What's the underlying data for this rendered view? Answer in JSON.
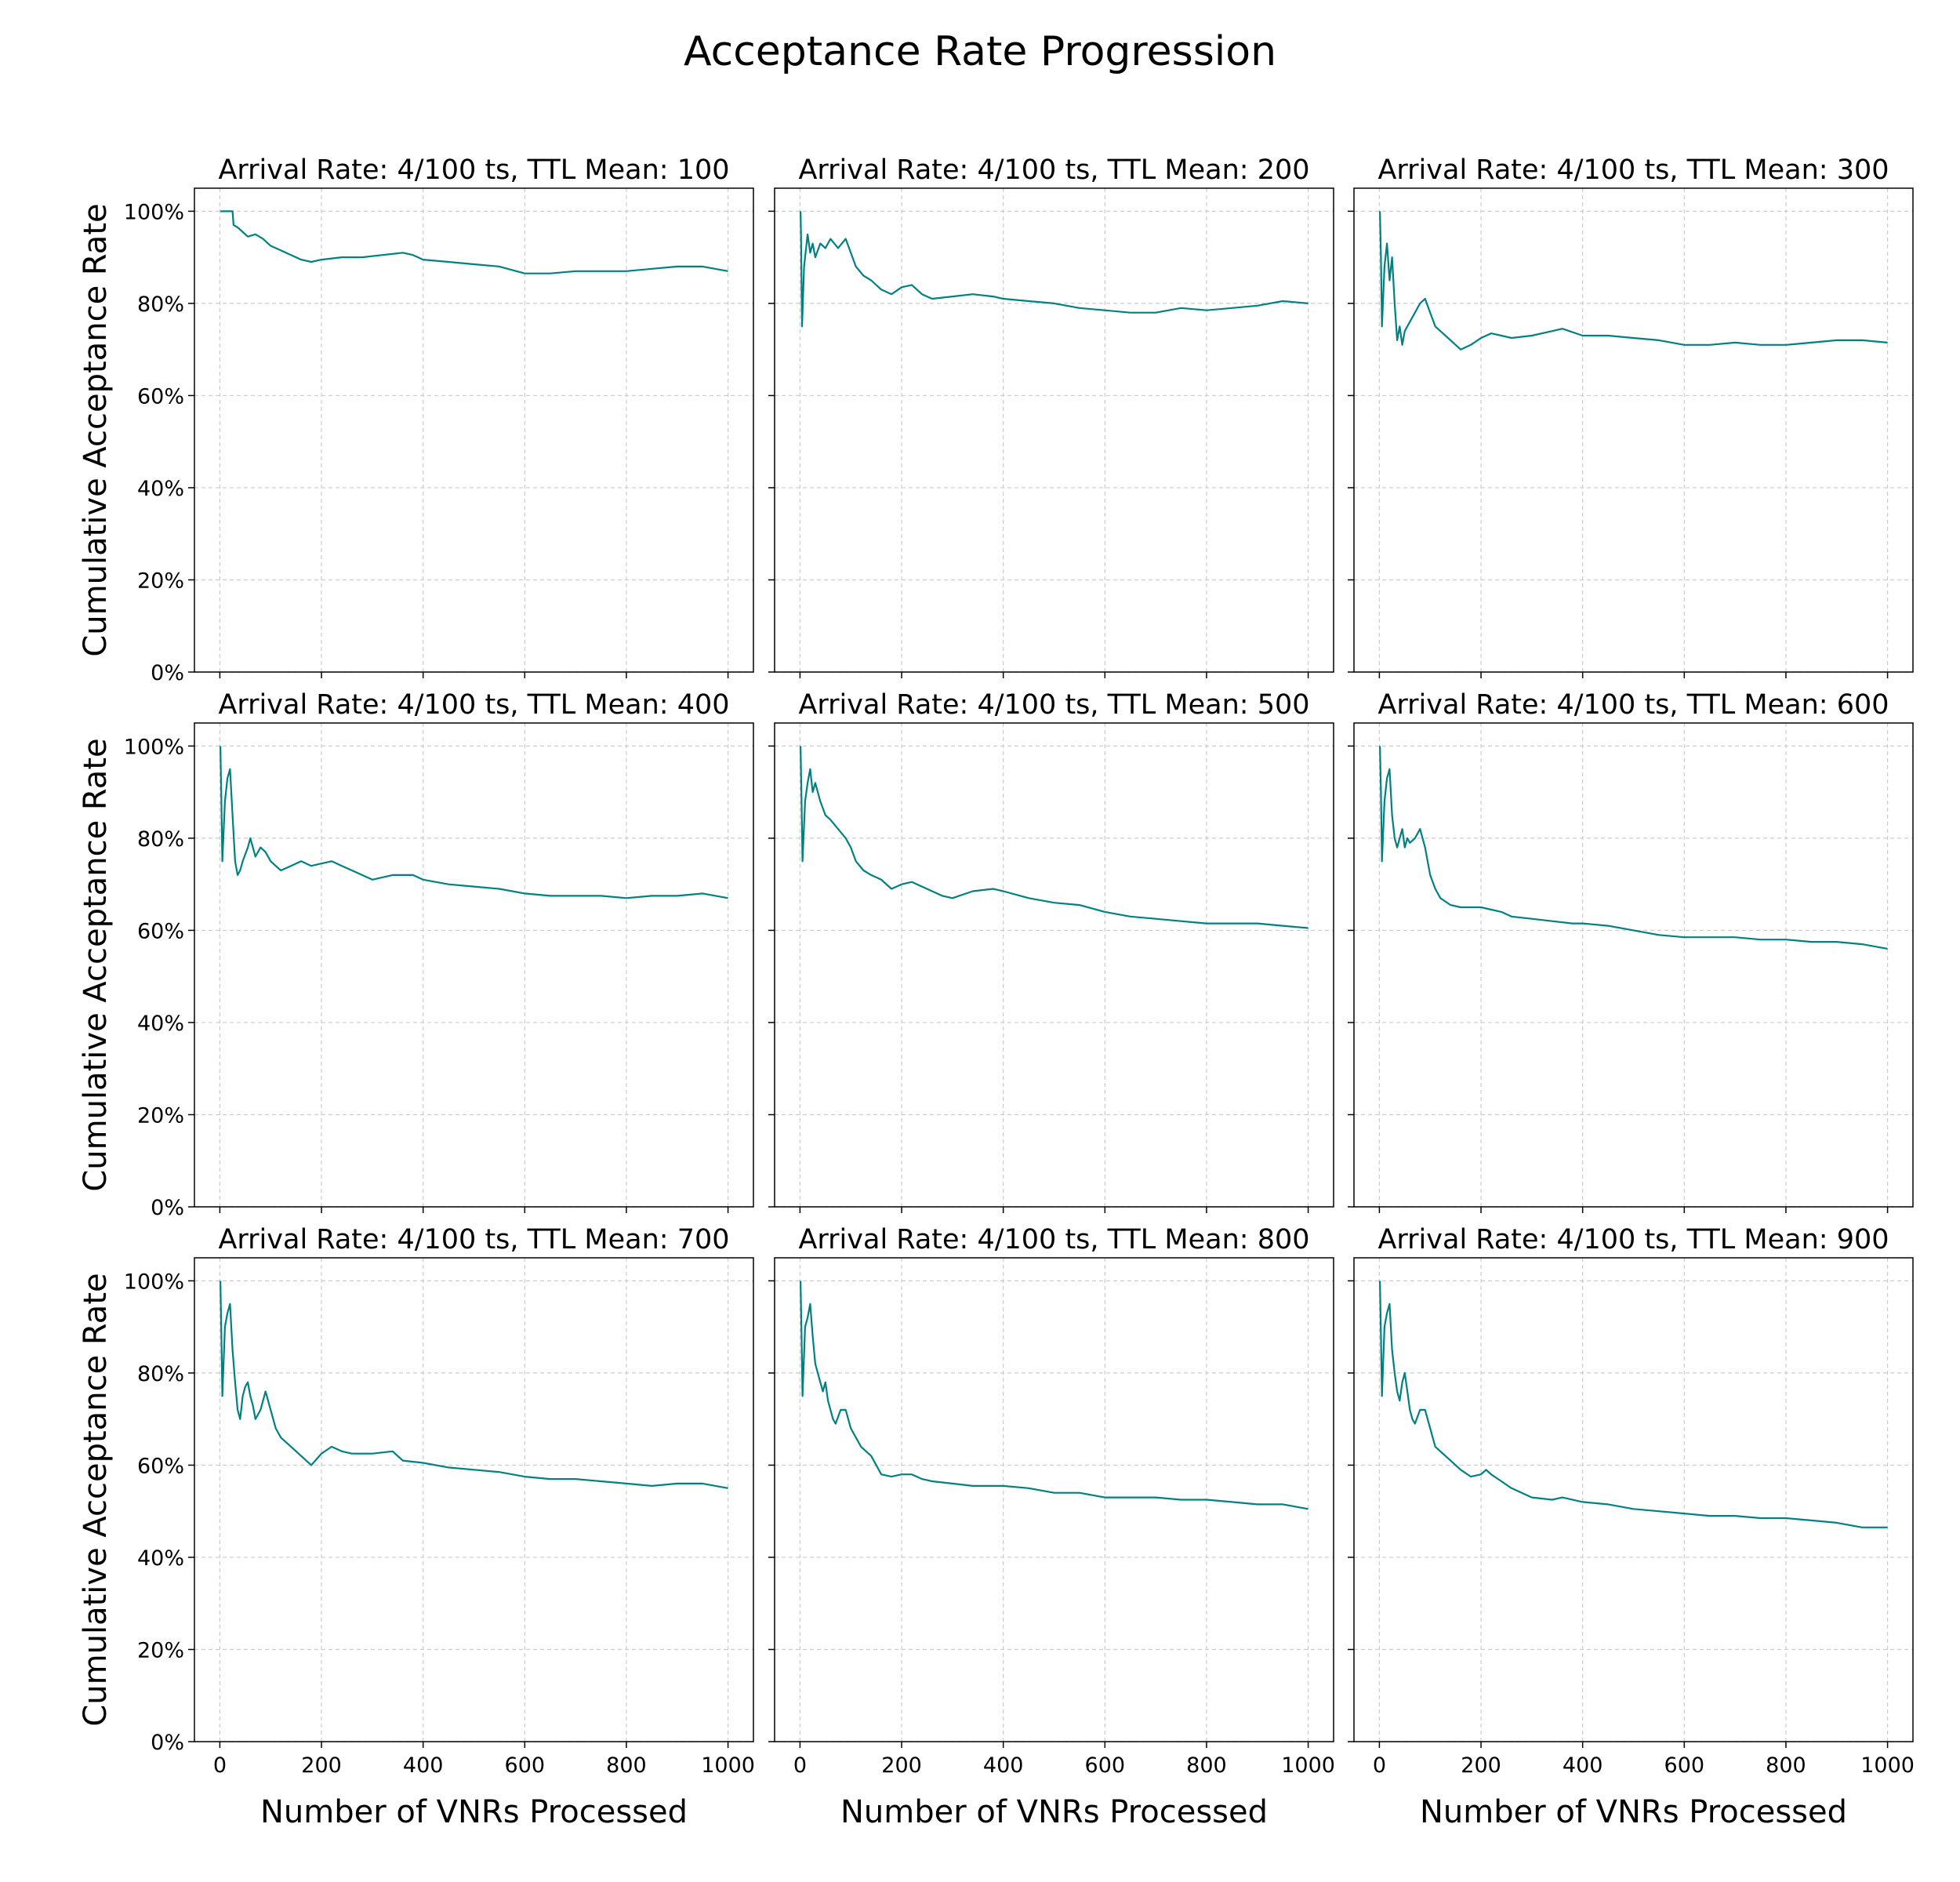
{
  "title": "Acceptance Rate Progression",
  "line_color": "#008080",
  "chart_data": [
    {
      "type": "line",
      "title": "Arrival Rate: 4/100 ts, TTL Mean: 100",
      "xlabel": "",
      "ylabel": "Cumulative Acceptance Rate",
      "xlim": [
        -50,
        1050
      ],
      "ylim": [
        0,
        105
      ],
      "xticks": [
        "0",
        "200",
        "400",
        "600",
        "800",
        "1000"
      ],
      "yticks": [
        "0%",
        "20%",
        "40%",
        "60%",
        "80%",
        "100%"
      ],
      "grid": true,
      "series": [
        {
          "x": [
            1,
            25,
            27,
            35,
            45,
            55,
            70,
            85,
            100,
            120,
            140,
            160,
            180,
            200,
            240,
            280,
            320,
            360,
            380,
            400,
            450,
            500,
            550,
            600,
            650,
            700,
            750,
            800,
            850,
            900,
            950,
            1000
          ],
          "y": [
            100,
            100,
            97,
            96.5,
            95.5,
            94.5,
            95,
            94,
            92.5,
            91.5,
            90.5,
            89.5,
            89,
            89.5,
            90,
            90,
            90.5,
            91,
            90.5,
            89.5,
            89,
            88.5,
            88,
            86.5,
            86.5,
            87,
            87,
            87,
            87.5,
            88,
            88,
            87
          ]
        }
      ]
    },
    {
      "type": "line",
      "title": "Arrival Rate: 4/100 ts, TTL Mean: 200",
      "xlabel": "",
      "ylabel": "",
      "xlim": [
        -50,
        1050
      ],
      "ylim": [
        0,
        105
      ],
      "xticks": [
        "0",
        "200",
        "400",
        "600",
        "800",
        "1000"
      ],
      "yticks": [
        "0%",
        "20%",
        "40%",
        "60%",
        "80%",
        "100%"
      ],
      "grid": true,
      "series": [
        {
          "x": [
            1,
            2,
            4,
            8,
            15,
            20,
            25,
            30,
            40,
            50,
            60,
            75,
            90,
            100,
            110,
            125,
            140,
            160,
            180,
            200,
            220,
            240,
            260,
            300,
            340,
            380,
            400,
            450,
            500,
            550,
            600,
            650,
            700,
            750,
            800,
            850,
            900,
            950,
            1000
          ],
          "y": [
            100,
            95,
            75,
            88,
            95,
            91,
            93,
            90,
            93,
            92,
            94,
            92,
            94,
            91,
            88,
            86,
            85,
            83,
            82,
            83.5,
            84,
            82,
            81,
            81.5,
            82,
            81.5,
            81,
            80.5,
            80,
            79,
            78.5,
            78,
            78,
            79,
            78.5,
            79,
            79.5,
            80.5,
            80
          ]
        }
      ]
    },
    {
      "type": "line",
      "title": "Arrival Rate: 4/100 ts, TTL Mean: 300",
      "xlabel": "",
      "ylabel": "",
      "xlim": [
        -50,
        1050
      ],
      "ylim": [
        0,
        105
      ],
      "xticks": [
        "0",
        "200",
        "400",
        "600",
        "800",
        "1000"
      ],
      "yticks": [
        "0%",
        "20%",
        "40%",
        "60%",
        "80%",
        "100%"
      ],
      "grid": true,
      "series": [
        {
          "x": [
            1,
            3,
            5,
            10,
            15,
            20,
            25,
            30,
            35,
            40,
            45,
            50,
            60,
            70,
            80,
            90,
            100,
            110,
            120,
            140,
            160,
            180,
            200,
            220,
            240,
            260,
            300,
            340,
            360,
            400,
            450,
            500,
            550,
            600,
            650,
            700,
            750,
            800,
            850,
            900,
            950,
            1000
          ],
          "y": [
            100,
            90,
            75,
            88,
            93,
            85,
            90,
            80,
            72,
            75,
            71,
            74,
            76,
            78,
            80,
            81,
            78,
            75,
            74,
            72,
            70,
            71,
            72.5,
            73.5,
            73,
            72.5,
            73,
            74,
            74.5,
            73,
            73,
            72.5,
            72,
            71,
            71,
            71.5,
            71,
            71,
            71.5,
            72,
            72,
            71.5
          ]
        }
      ]
    },
    {
      "type": "line",
      "title": "Arrival Rate: 4/100 ts, TTL Mean: 400",
      "xlabel": "",
      "ylabel": "Cumulative Acceptance Rate",
      "xlim": [
        -50,
        1050
      ],
      "ylim": [
        0,
        105
      ],
      "xticks": [
        "0",
        "200",
        "400",
        "600",
        "800",
        "1000"
      ],
      "yticks": [
        "0%",
        "20%",
        "40%",
        "60%",
        "80%",
        "100%"
      ],
      "grid": true,
      "series": [
        {
          "x": [
            1,
            3,
            5,
            10,
            15,
            20,
            25,
            30,
            35,
            40,
            45,
            55,
            60,
            70,
            80,
            90,
            100,
            110,
            120,
            140,
            160,
            180,
            200,
            220,
            240,
            260,
            280,
            300,
            340,
            380,
            400,
            450,
            500,
            550,
            600,
            650,
            700,
            750,
            800,
            850,
            900,
            950,
            1000
          ],
          "y": [
            100,
            88,
            75,
            88,
            93,
            95,
            85,
            75,
            72,
            73,
            75,
            78,
            80,
            76,
            78,
            77,
            75,
            74,
            73,
            74,
            75,
            74,
            74.5,
            75,
            74,
            73,
            72,
            71,
            72,
            72,
            71,
            70,
            69.5,
            69,
            68,
            67.5,
            67.5,
            67.5,
            67,
            67.5,
            67.5,
            68,
            67
          ]
        }
      ]
    },
    {
      "type": "line",
      "title": "Arrival Rate: 4/100 ts, TTL Mean: 500",
      "xlabel": "",
      "ylabel": "",
      "xlim": [
        -50,
        1050
      ],
      "ylim": [
        0,
        105
      ],
      "xticks": [
        "0",
        "200",
        "400",
        "600",
        "800",
        "1000"
      ],
      "yticks": [
        "0%",
        "20%",
        "40%",
        "60%",
        "80%",
        "100%"
      ],
      "grid": true,
      "series": [
        {
          "x": [
            1,
            3,
            5,
            10,
            15,
            20,
            25,
            30,
            40,
            50,
            60,
            75,
            90,
            100,
            110,
            125,
            140,
            160,
            180,
            200,
            220,
            240,
            260,
            280,
            300,
            340,
            380,
            400,
            450,
            500,
            550,
            600,
            650,
            700,
            750,
            800,
            850,
            900,
            950,
            1000
          ],
          "y": [
            100,
            88,
            75,
            88,
            92,
            95,
            90,
            92,
            88,
            85,
            84,
            82,
            80,
            78,
            75,
            73,
            72,
            71,
            69,
            70,
            70.5,
            69.5,
            68.5,
            67.5,
            67,
            68.5,
            69,
            68.5,
            67,
            66,
            65.5,
            64,
            63,
            62.5,
            62,
            61.5,
            61.5,
            61.5,
            61,
            60.5
          ]
        }
      ]
    },
    {
      "type": "line",
      "title": "Arrival Rate: 4/100 ts, TTL Mean: 600",
      "xlabel": "",
      "ylabel": "",
      "xlim": [
        -50,
        1050
      ],
      "ylim": [
        0,
        105
      ],
      "xticks": [
        "0",
        "200",
        "400",
        "600",
        "800",
        "1000"
      ],
      "yticks": [
        "0%",
        "20%",
        "40%",
        "60%",
        "80%",
        "100%"
      ],
      "grid": true,
      "series": [
        {
          "x": [
            1,
            3,
            5,
            10,
            15,
            20,
            25,
            30,
            35,
            40,
            45,
            50,
            55,
            60,
            70,
            80,
            90,
            100,
            110,
            120,
            140,
            160,
            180,
            200,
            220,
            240,
            260,
            300,
            340,
            380,
            400,
            450,
            500,
            550,
            600,
            650,
            700,
            750,
            800,
            850,
            900,
            950,
            1000
          ],
          "y": [
            100,
            90,
            75,
            88,
            93,
            95,
            85,
            80,
            78,
            80,
            82,
            78,
            80,
            79,
            80,
            82,
            78,
            72,
            69,
            67,
            65.5,
            65,
            65,
            65,
            64.5,
            64,
            63,
            62.5,
            62,
            61.5,
            61.5,
            61,
            60,
            59,
            58.5,
            58.5,
            58.5,
            58,
            58,
            57.5,
            57.5,
            57,
            56
          ]
        }
      ]
    },
    {
      "type": "line",
      "title": "Arrival Rate: 4/100 ts, TTL Mean: 700",
      "xlabel": "Number of VNRs Processed",
      "ylabel": "Cumulative Acceptance Rate",
      "xlim": [
        -50,
        1050
      ],
      "ylim": [
        0,
        105
      ],
      "xticks": [
        "0",
        "200",
        "400",
        "600",
        "800",
        "1000"
      ],
      "yticks": [
        "0%",
        "20%",
        "40%",
        "60%",
        "80%",
        "100%"
      ],
      "grid": true,
      "series": [
        {
          "x": [
            1,
            3,
            5,
            10,
            15,
            20,
            25,
            30,
            35,
            40,
            45,
            50,
            55,
            60,
            65,
            70,
            80,
            90,
            100,
            110,
            120,
            140,
            160,
            180,
            200,
            220,
            240,
            260,
            300,
            340,
            360,
            400,
            450,
            500,
            550,
            600,
            650,
            700,
            750,
            800,
            850,
            900,
            950,
            1000
          ],
          "y": [
            100,
            88,
            75,
            90,
            93,
            95,
            85,
            78,
            72,
            70,
            75,
            77,
            78,
            75,
            73,
            70,
            72,
            76,
            72,
            68,
            66,
            64,
            62,
            60,
            62.5,
            64,
            63,
            62.5,
            62.5,
            63,
            61,
            60.5,
            59.5,
            59,
            58.5,
            57.5,
            57,
            57,
            56.5,
            56,
            55.5,
            56,
            56,
            55
          ]
        }
      ]
    },
    {
      "type": "line",
      "title": "Arrival Rate: 4/100 ts, TTL Mean: 800",
      "xlabel": "Number of VNRs Processed",
      "ylabel": "",
      "xlim": [
        -50,
        1050
      ],
      "ylim": [
        0,
        105
      ],
      "xticks": [
        "0",
        "200",
        "400",
        "600",
        "800",
        "1000"
      ],
      "yticks": [
        "0%",
        "20%",
        "40%",
        "60%",
        "80%",
        "100%"
      ],
      "grid": true,
      "series": [
        {
          "x": [
            1,
            3,
            5,
            10,
            15,
            20,
            25,
            30,
            35,
            40,
            45,
            50,
            55,
            60,
            65,
            70,
            80,
            90,
            100,
            110,
            120,
            140,
            160,
            180,
            200,
            220,
            240,
            260,
            300,
            340,
            380,
            400,
            450,
            500,
            550,
            600,
            650,
            700,
            750,
            800,
            850,
            900,
            950,
            1000
          ],
          "y": [
            100,
            88,
            75,
            90,
            92,
            95,
            88,
            82,
            80,
            78,
            76,
            78,
            74,
            72,
            70,
            69,
            72,
            72,
            68,
            66,
            64,
            62,
            58,
            57.5,
            58,
            58,
            57,
            56.5,
            56,
            55.5,
            55.5,
            55.5,
            55,
            54,
            54,
            53,
            53,
            53,
            52.5,
            52.5,
            52,
            51.5,
            51.5,
            50.5
          ]
        }
      ]
    },
    {
      "type": "line",
      "title": "Arrival Rate: 4/100 ts, TTL Mean: 900",
      "xlabel": "Number of VNRs Processed",
      "ylabel": "",
      "xlim": [
        -50,
        1050
      ],
      "ylim": [
        0,
        105
      ],
      "xticks": [
        "0",
        "200",
        "400",
        "600",
        "800",
        "1000"
      ],
      "yticks": [
        "0%",
        "20%",
        "40%",
        "60%",
        "80%",
        "100%"
      ],
      "grid": true,
      "series": [
        {
          "x": [
            1,
            3,
            5,
            10,
            15,
            20,
            25,
            30,
            35,
            40,
            45,
            50,
            55,
            60,
            65,
            70,
            80,
            90,
            100,
            110,
            120,
            140,
            160,
            180,
            200,
            210,
            220,
            240,
            260,
            300,
            340,
            360,
            400,
            450,
            500,
            550,
            600,
            650,
            700,
            750,
            800,
            850,
            900,
            950,
            1000
          ],
          "y": [
            100,
            88,
            75,
            90,
            93,
            95,
            85,
            80,
            76,
            74,
            78,
            80,
            76,
            72,
            70,
            69,
            72,
            72,
            68,
            64,
            63,
            61,
            59,
            57.5,
            58,
            59,
            58,
            56.5,
            55,
            53,
            52.5,
            53,
            52,
            51.5,
            50.5,
            50,
            49.5,
            49,
            49,
            48.5,
            48.5,
            48,
            47.5,
            46.5,
            46.5
          ]
        }
      ]
    }
  ]
}
